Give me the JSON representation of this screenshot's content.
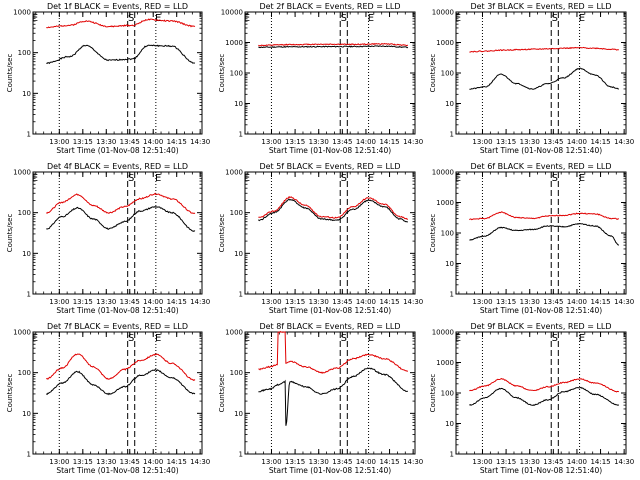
{
  "figure": {
    "background": "#ffffff",
    "events_color": "#000000",
    "lld_color": "#e00000",
    "ylabel": "Counts/sec",
    "xlabel": "Start Time (01-Nov-08 12:51:40)",
    "x_tick_labels": [
      "13:00",
      "13:15",
      "13:30",
      "13:45",
      "14:00",
      "14:15",
      "14:30"
    ],
    "marker_labels": [
      "E",
      "S",
      "E"
    ]
  },
  "chart_data": [
    {
      "type": "line",
      "detector": "1f",
      "title": "Det 1f BLACK = Events, RED = LLD",
      "x_range_min": [
        -8.5,
        99.5
      ],
      "ylim": [
        1,
        1000
      ],
      "y_ticks": [
        "1",
        "10",
        "100",
        "1000"
      ],
      "markers_dotted_min": [
        8.3,
        70
      ],
      "markers_dashed_min": [
        52,
        56.5
      ],
      "x_min": [
        0,
        15,
        25,
        40,
        55,
        65,
        80,
        95
      ],
      "series": [
        {
          "name": "Events",
          "values": [
            55,
            80,
            150,
            65,
            70,
            150,
            145,
            55
          ]
        },
        {
          "name": "LLD",
          "values": [
            420,
            470,
            600,
            440,
            470,
            650,
            600,
            440
          ]
        }
      ]
    },
    {
      "type": "line",
      "detector": "2f",
      "title": "Det 2f BLACK = Events, RED = LLD",
      "x_range_min": [
        -8.5,
        99.5
      ],
      "ylim": [
        1,
        10000
      ],
      "y_ticks": [
        "1",
        "10",
        "100",
        "1000",
        "10000"
      ],
      "markers_dotted_min": [
        8.3,
        70
      ],
      "markers_dashed_min": [
        52,
        56.5
      ],
      "x_min": [
        0,
        20,
        40,
        60,
        80,
        95
      ],
      "series": [
        {
          "name": "Events",
          "values": [
            700,
            720,
            730,
            740,
            760,
            700
          ]
        },
        {
          "name": "LLD",
          "values": [
            800,
            850,
            880,
            870,
            900,
            820
          ]
        }
      ]
    },
    {
      "type": "line",
      "detector": "3f",
      "title": "Det 3f BLACK = Events, RED = LLD",
      "x_range_min": [
        -8.5,
        99.5
      ],
      "ylim": [
        1,
        10000
      ],
      "y_ticks": [
        "1",
        "10",
        "100",
        "1000",
        "10000"
      ],
      "markers_dotted_min": [
        8.3,
        70
      ],
      "markers_dashed_min": [
        52,
        56.5
      ],
      "x_min": [
        0,
        10,
        20,
        30,
        40,
        50,
        60,
        70,
        80,
        90,
        95
      ],
      "series": [
        {
          "name": "Events",
          "values": [
            30,
            35,
            90,
            45,
            30,
            45,
            70,
            140,
            85,
            35,
            30
          ]
        },
        {
          "name": "LLD",
          "values": [
            500,
            520,
            560,
            580,
            600,
            620,
            650,
            670,
            650,
            600,
            580
          ]
        }
      ]
    },
    {
      "type": "line",
      "detector": "4f",
      "title": "Det 4f BLACK = Events, RED = LLD",
      "x_range_min": [
        -8.5,
        99.5
      ],
      "ylim": [
        1,
        1000
      ],
      "y_ticks": [
        "1",
        "10",
        "100",
        "1000"
      ],
      "markers_dotted_min": [
        8.3,
        70
      ],
      "markers_dashed_min": [
        52,
        56.5
      ],
      "x_min": [
        0,
        10,
        20,
        30,
        40,
        50,
        60,
        70,
        80,
        95
      ],
      "series": [
        {
          "name": "Events",
          "values": [
            40,
            80,
            130,
            70,
            40,
            60,
            110,
            140,
            100,
            35
          ]
        },
        {
          "name": "LLD",
          "values": [
            100,
            180,
            280,
            150,
            100,
            140,
            220,
            290,
            220,
            95
          ]
        }
      ]
    },
    {
      "type": "line",
      "detector": "5f",
      "title": "Det 5f BLACK = Events, RED = LLD",
      "x_range_min": [
        -8.5,
        99.5
      ],
      "ylim": [
        1,
        1000
      ],
      "y_ticks": [
        "1",
        "10",
        "100",
        "1000"
      ],
      "markers_dotted_min": [
        8.3,
        70
      ],
      "markers_dashed_min": [
        52,
        56.5
      ],
      "x_min": [
        0,
        10,
        20,
        30,
        40,
        50,
        60,
        70,
        80,
        90,
        95
      ],
      "series": [
        {
          "name": "Events",
          "values": [
            65,
            100,
            210,
            130,
            70,
            65,
            120,
            200,
            140,
            70,
            60
          ]
        },
        {
          "name": "LLD",
          "values": [
            75,
            110,
            240,
            150,
            80,
            75,
            140,
            230,
            160,
            80,
            70
          ]
        }
      ]
    },
    {
      "type": "line",
      "detector": "6f",
      "title": "Det 6f BLACK = Events, RED = LLD",
      "x_range_min": [
        -8.5,
        99.5
      ],
      "ylim": [
        1,
        10000
      ],
      "y_ticks": [
        "1",
        "10",
        "100",
        "1000",
        "10000"
      ],
      "markers_dotted_min": [
        8.3,
        70
      ],
      "markers_dashed_min": [
        52,
        56.5
      ],
      "x_min": [
        0,
        10,
        20,
        30,
        40,
        50,
        60,
        70,
        80,
        90,
        95
      ],
      "series": [
        {
          "name": "Events",
          "values": [
            60,
            80,
            150,
            120,
            130,
            170,
            160,
            200,
            170,
            80,
            40
          ]
        },
        {
          "name": "LLD",
          "values": [
            280,
            300,
            480,
            320,
            300,
            360,
            380,
            440,
            420,
            300,
            290
          ]
        }
      ]
    },
    {
      "type": "line",
      "detector": "7f",
      "title": "Det 7f BLACK = Events, RED = LLD",
      "x_range_min": [
        -8.5,
        99.5
      ],
      "ylim": [
        1,
        1000
      ],
      "y_ticks": [
        "1",
        "10",
        "100",
        "1000"
      ],
      "markers_dotted_min": [
        8.3,
        70
      ],
      "markers_dashed_min": [
        52,
        56.5
      ],
      "x_min": [
        0,
        10,
        20,
        30,
        40,
        50,
        60,
        70,
        80,
        95
      ],
      "series": [
        {
          "name": "Events",
          "values": [
            30,
            55,
            105,
            50,
            30,
            45,
            85,
            115,
            75,
            30
          ]
        },
        {
          "name": "LLD",
          "values": [
            70,
            130,
            290,
            140,
            70,
            120,
            200,
            280,
            170,
            65
          ]
        }
      ]
    },
    {
      "type": "line",
      "detector": "8f",
      "title": "Det 8f BLACK = Events, RED = LLD",
      "x_range_min": [
        -8.5,
        99.5
      ],
      "ylim": [
        1,
        1000
      ],
      "y_ticks": [
        "1",
        "10",
        "100",
        "1000"
      ],
      "markers_dotted_min": [
        8.3,
        70
      ],
      "markers_dashed_min": [
        52,
        56.5
      ],
      "x_min": [
        0,
        8,
        12,
        12.5,
        17,
        17.5,
        20,
        30,
        40,
        50,
        60,
        70,
        80,
        95
      ],
      "series": [
        {
          "name": "Events",
          "values": [
            35,
            40,
            50,
            50,
            60,
            5,
            60,
            45,
            30,
            40,
            80,
            130,
            90,
            35
          ]
        },
        {
          "name": "LLD",
          "values": [
            120,
            140,
            160,
            1000,
            1000,
            170,
            190,
            140,
            100,
            130,
            220,
            280,
            220,
            110
          ]
        }
      ]
    },
    {
      "type": "line",
      "detector": "9f",
      "title": "Det 9f BLACK = Events, RED = LLD",
      "x_range_min": [
        -8.5,
        99.5
      ],
      "ylim": [
        1,
        10000
      ],
      "y_ticks": [
        "1",
        "10",
        "100",
        "1000",
        "10000"
      ],
      "markers_dotted_min": [
        8.3,
        70
      ],
      "markers_dashed_min": [
        52,
        56.5
      ],
      "x_min": [
        0,
        10,
        20,
        30,
        40,
        50,
        60,
        70,
        80,
        95
      ],
      "series": [
        {
          "name": "Events",
          "values": [
            40,
            70,
            140,
            70,
            40,
            60,
            110,
            150,
            90,
            40
          ]
        },
        {
          "name": "LLD",
          "values": [
            120,
            170,
            290,
            170,
            120,
            160,
            220,
            290,
            210,
            110
          ]
        }
      ]
    }
  ]
}
